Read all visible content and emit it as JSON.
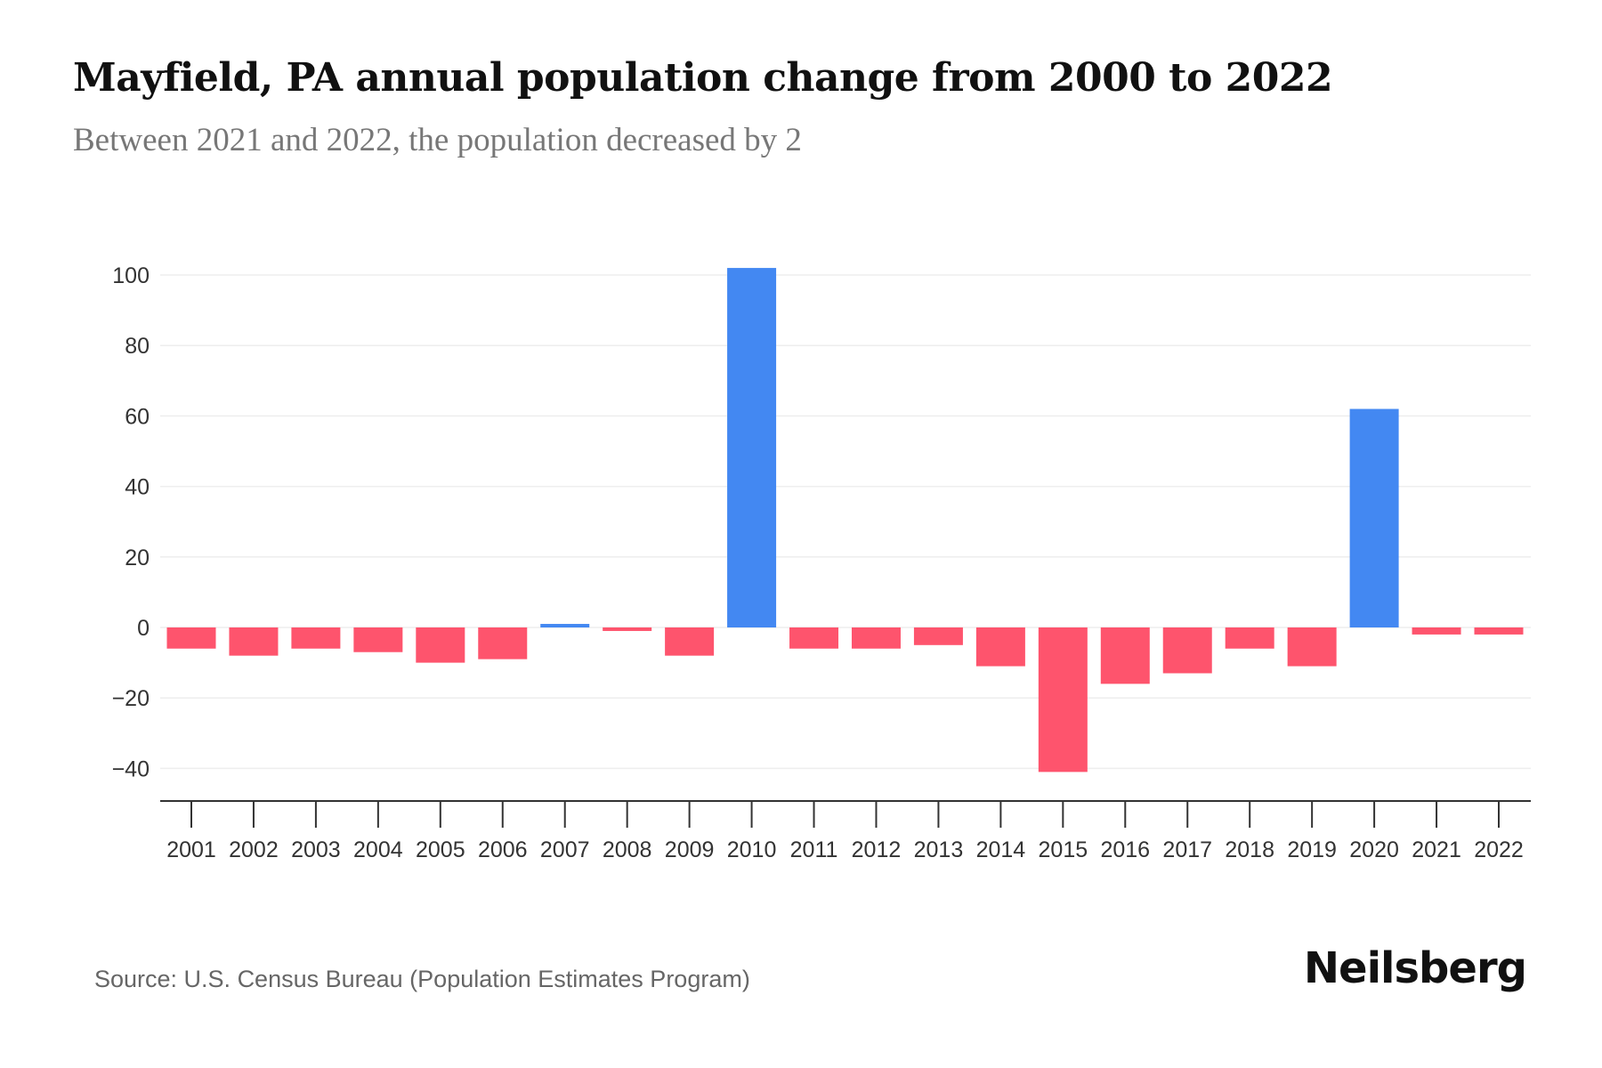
{
  "chart_data": {
    "type": "bar",
    "title": "Mayfield, PA annual population change from 2000 to 2022",
    "subtitle": "Between 2021 and 2022, the population decreased by 2",
    "xlabel": "",
    "ylabel": "",
    "ylim": [
      -45,
      105
    ],
    "yticks": [
      100,
      80,
      60,
      40,
      20,
      0,
      -20,
      -40
    ],
    "ytick_labels": [
      "100",
      "80",
      "60",
      "40",
      "20",
      "0",
      "−20",
      "−40"
    ],
    "grid": true,
    "categories": [
      "2001",
      "2002",
      "2003",
      "2004",
      "2005",
      "2006",
      "2007",
      "2008",
      "2009",
      "2010",
      "2011",
      "2012",
      "2013",
      "2014",
      "2015",
      "2016",
      "2017",
      "2018",
      "2019",
      "2020",
      "2021",
      "2022"
    ],
    "values": [
      -6,
      -8,
      -6,
      -7,
      -10,
      -9,
      1,
      -1,
      -8,
      102,
      -6,
      -6,
      -5,
      -11,
      -41,
      -16,
      -13,
      -6,
      -11,
      62,
      -2,
      -2
    ],
    "colors": {
      "positive": "#4388f2",
      "negative": "#fe546d"
    }
  },
  "source": "Source: U.S. Census Bureau (Population Estimates Program)",
  "logo": "Neilsberg"
}
